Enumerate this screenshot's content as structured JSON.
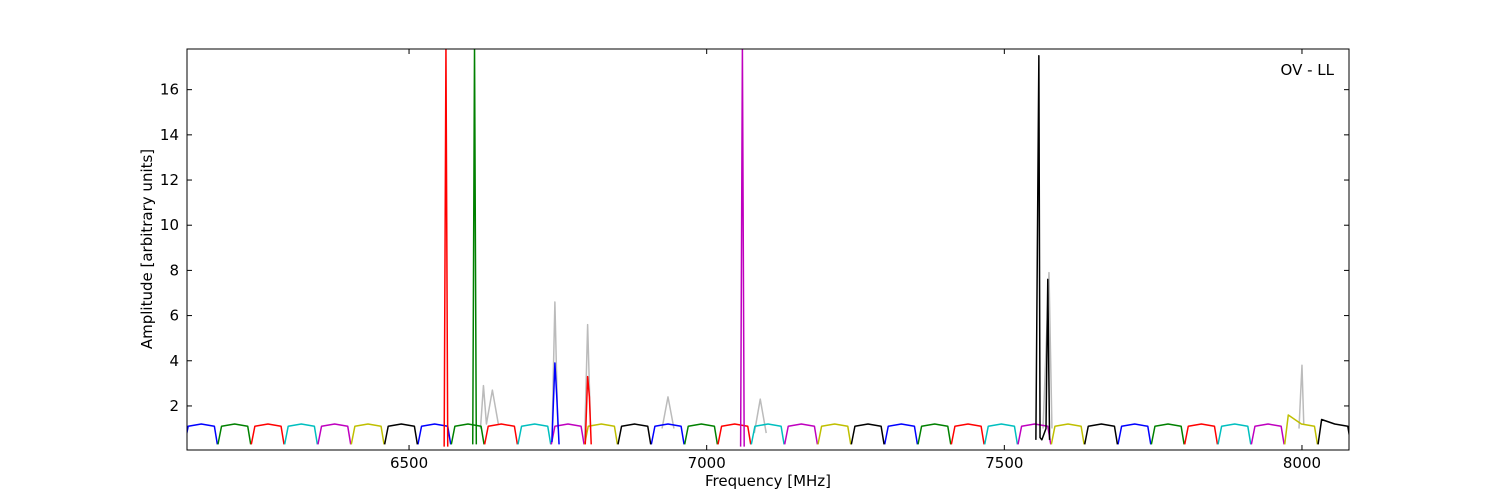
{
  "chart_data": {
    "type": "line",
    "xlabel": "Frequency [MHz]",
    "ylabel": "Amplitude [arbitrary units]",
    "annotation": "OV - LL",
    "xlim": [
      6127,
      8079
    ],
    "ylim": [
      0.05,
      17.8
    ],
    "xticks": [
      6500,
      7000,
      7500,
      8000
    ],
    "yticks": [
      2,
      4,
      6,
      8,
      10,
      12,
      14,
      16
    ],
    "series": [
      {
        "color": "#bbbbbb",
        "x": [
          6740,
          6745,
          6750,
          null,
          6795,
          6800,
          6805,
          null,
          6620,
          6625,
          6630,
          6640,
          6650,
          null,
          6925,
          6935,
          6945,
          null,
          7565,
          7575,
          7580,
          null,
          7995,
          8000,
          8003,
          null,
          7080,
          7090,
          7100
        ],
        "values": [
          0.5,
          6.6,
          1,
          null,
          0.5,
          5.6,
          1,
          null,
          1,
          2.9,
          1.2,
          2.7,
          1.2,
          null,
          1,
          2.4,
          1,
          null,
          1,
          7.9,
          1,
          null,
          1,
          3.8,
          1.2,
          null,
          0.8,
          2.3,
          0.8
        ]
      },
      {
        "color": "#0000ff",
        "x": [
          6123,
          6129,
          6151,
          6173,
          6178,
          null,
          6515,
          6521,
          6543,
          6565,
          6570,
          null,
          6907,
          6913,
          6935,
          6957,
          6962,
          null,
          7299,
          7305,
          7327,
          7349,
          7354,
          null,
          7691,
          7697,
          7719,
          7741,
          7746
        ],
        "values": [
          0.3,
          1.1,
          1.2,
          1.1,
          0.3,
          null,
          0.3,
          1.1,
          1.2,
          1.1,
          0.3,
          null,
          0.3,
          1.1,
          1.2,
          1.1,
          0.3,
          null,
          0.3,
          1.1,
          1.2,
          1.1,
          0.3,
          null,
          0.3,
          1.1,
          1.2,
          1.1,
          0.3
        ]
      },
      {
        "color": "#008000",
        "x": [
          6179,
          6185,
          6207,
          6229,
          6234,
          null,
          6571,
          6577,
          6599,
          6621,
          6626,
          null,
          6963,
          6969,
          6991,
          7013,
          7018,
          null,
          7355,
          7361,
          7383,
          7405,
          7410,
          null,
          7747,
          7753,
          7775,
          7797,
          7802
        ],
        "values": [
          0.3,
          1.1,
          1.2,
          1.1,
          0.3,
          null,
          0.3,
          1.1,
          1.2,
          1.1,
          0.3,
          null,
          0.3,
          1.1,
          1.2,
          1.1,
          0.3,
          null,
          0.3,
          1.1,
          1.2,
          1.1,
          0.3,
          null,
          0.3,
          1.1,
          1.2,
          1.1,
          0.3
        ]
      },
      {
        "color": "#ff0000",
        "x": [
          6235,
          6241,
          6263,
          6285,
          6290,
          null,
          6627,
          6633,
          6655,
          6677,
          6682,
          null,
          7019,
          7025,
          7047,
          7069,
          7074,
          null,
          7411,
          7417,
          7439,
          7461,
          7466,
          null,
          7803,
          7809,
          7831,
          7853,
          7858
        ],
        "values": [
          0.3,
          1.1,
          1.2,
          1.1,
          0.3,
          null,
          0.3,
          1.1,
          1.2,
          1.1,
          0.3,
          null,
          0.3,
          1.1,
          1.2,
          1.1,
          0.3,
          null,
          0.3,
          1.1,
          1.2,
          1.1,
          0.3,
          null,
          0.3,
          1.1,
          1.2,
          1.1,
          0.3
        ]
      },
      {
        "color": "#00bfbf",
        "x": [
          6291,
          6297,
          6319,
          6341,
          6346,
          null,
          6683,
          6689,
          6711,
          6733,
          6738,
          null,
          7075,
          7081,
          7103,
          7125,
          7130,
          null,
          7467,
          7473,
          7495,
          7517,
          7522,
          null,
          7859,
          7865,
          7887,
          7909,
          7914
        ],
        "values": [
          0.3,
          1.1,
          1.2,
          1.1,
          0.3,
          null,
          0.3,
          1.1,
          1.2,
          1.1,
          0.3,
          null,
          0.3,
          1.1,
          1.2,
          1.1,
          0.3,
          null,
          0.3,
          1.1,
          1.2,
          1.1,
          0.3,
          null,
          0.3,
          1.1,
          1.2,
          1.1,
          0.3
        ]
      },
      {
        "color": "#bf00bf",
        "x": [
          6347,
          6353,
          6375,
          6397,
          6402,
          null,
          6739,
          6745,
          6767,
          6789,
          6794,
          null,
          7131,
          7137,
          7159,
          7181,
          7186,
          null,
          7523,
          7529,
          7551,
          7573,
          7578,
          null,
          7915,
          7921,
          7943,
          7965,
          7970
        ],
        "values": [
          0.3,
          1.1,
          1.2,
          1.1,
          0.3,
          null,
          0.3,
          1.1,
          1.2,
          1.1,
          0.3,
          null,
          0.3,
          1.1,
          1.2,
          1.1,
          0.3,
          null,
          0.3,
          1.1,
          1.2,
          1.1,
          0.3,
          null,
          0.3,
          1.1,
          1.2,
          1.1,
          0.3
        ]
      },
      {
        "color": "#bfbf00",
        "x": [
          6403,
          6409,
          6431,
          6453,
          6458,
          null,
          6795,
          6801,
          6823,
          6845,
          6850,
          null,
          7187,
          7193,
          7215,
          7237,
          7242,
          null,
          7579,
          7585,
          7607,
          7629,
          7634,
          null,
          7971,
          7977,
          7999,
          8021,
          8026
        ],
        "values": [
          0.3,
          1.1,
          1.2,
          1.1,
          0.3,
          null,
          0.3,
          1.1,
          1.2,
          1.1,
          0.3,
          null,
          0.3,
          1.1,
          1.2,
          1.1,
          0.3,
          null,
          0.3,
          1.1,
          1.2,
          1.1,
          0.3,
          null,
          0.3,
          1.6,
          1.2,
          1.1,
          0.3
        ]
      },
      {
        "color": "#000000",
        "x": [
          6459,
          6465,
          6487,
          6509,
          6514,
          null,
          6851,
          6857,
          6879,
          6901,
          6906,
          null,
          7243,
          7249,
          7271,
          7293,
          7298,
          null,
          7635,
          7641,
          7663,
          7685,
          7690,
          null,
          8027,
          8033,
          8055,
          8077,
          8082
        ],
        "values": [
          0.3,
          1.1,
          1.2,
          1.1,
          0.3,
          null,
          0.3,
          1.1,
          1.2,
          1.1,
          0.3,
          null,
          0.3,
          1.1,
          1.2,
          1.1,
          0.3,
          null,
          0.3,
          1.1,
          1.2,
          1.1,
          0.3,
          null,
          0.3,
          1.4,
          1.2,
          1.1,
          0.3
        ]
      },
      {
        "color": "#0000ff",
        "x": [
          6740,
          6745,
          6748,
          6752
        ],
        "values": [
          0.4,
          3.9,
          2.5,
          0.3
        ]
      },
      {
        "color": "#ff0000",
        "x": [
          6796,
          6800,
          6803,
          6806
        ],
        "values": [
          0.3,
          3.3,
          2.4,
          0.3
        ]
      },
      {
        "color": "#ff0000",
        "x": [
          6559,
          6562,
          6565
        ],
        "values": [
          0.2,
          17.9,
          0.2
        ]
      },
      {
        "color": "#008000",
        "x": [
          6607,
          6610,
          6613
        ],
        "values": [
          0.3,
          17.9,
          0.3
        ]
      },
      {
        "color": "#bf00bf",
        "x": [
          7057,
          7060,
          7063
        ],
        "values": [
          0.2,
          17.9,
          0.2
        ]
      },
      {
        "color": "#000000",
        "x": [
          7553,
          7558,
          7560,
          7563,
          7570,
          7573,
          7576
        ],
        "values": [
          0.5,
          17.5,
          0.6,
          0.5,
          1.0,
          7.6,
          0.5
        ]
      }
    ]
  }
}
